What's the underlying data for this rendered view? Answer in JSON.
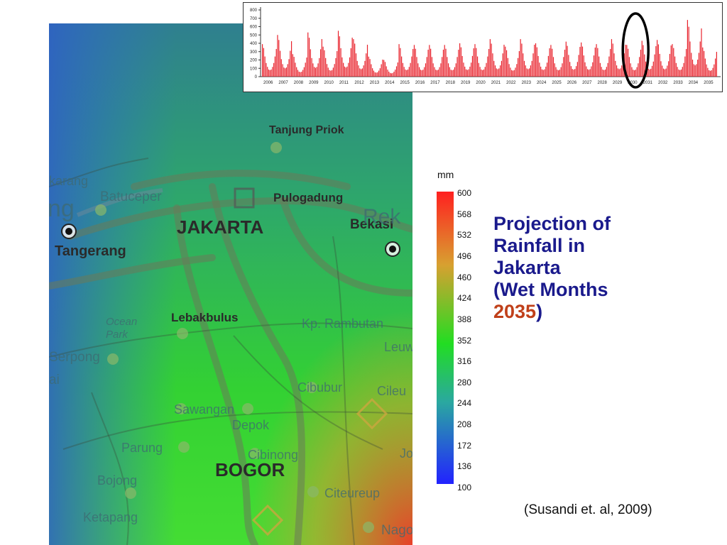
{
  "map": {
    "labels": {
      "tanjung_priok": "Tanjung Priok",
      "pulogadung": "Pulogadung",
      "jakarta": "JAKARTA",
      "bekasi": "Bekasi",
      "tangerang": "Tangerang",
      "batuceper": "Batuceper",
      "karang": "karang",
      "ng": "ng",
      "lebakbulus": "Lebakbulus",
      "ocean_park": "Ocean Park",
      "serpong": "Serpong",
      "kp_rambutan": "Kp. Rambutan",
      "leuw": "Leuw",
      "cibubur": "Cibubur",
      "cileu": "Cileu",
      "sawangan": "Sawangan",
      "depok": "Depok",
      "parung": "Parung",
      "cibinong": "Cibinong",
      "bogor": "BOGOR",
      "bojong": "Bojong",
      "citeureup": "Citeureup",
      "ketapang": "Ketapang",
      "nago": "Nago",
      "rek": "Rek",
      "jo": "Jo",
      "ai": "ai"
    },
    "icons": [
      "city-marker-icon",
      "roadsign-icon"
    ]
  },
  "legend": {
    "unit": "mm",
    "ticks": [
      "600",
      "568",
      "532",
      "496",
      "460",
      "424",
      "388",
      "352",
      "316",
      "280",
      "244",
      "208",
      "172",
      "136",
      "100"
    ],
    "colors": {
      "high": "#ff2020",
      "mid": "#22dd22",
      "low": "#2222ff"
    }
  },
  "title": {
    "line1": "Projection of",
    "line2": "Rainfall in",
    "line3": "Jakarta",
    "line4_prefix": "(Wet Months ",
    "line4_year": "2035",
    "line4_suffix": ")"
  },
  "citation": "(Susandi et. al, 2009)",
  "chart_data": {
    "type": "bar",
    "color": "#e8202a",
    "x_start_year": 2006,
    "x_end_year": 2035,
    "x_tick_labels": [
      "2006",
      "2007",
      "2008",
      "2009",
      "2010",
      "2011",
      "2012",
      "2013",
      "2014",
      "2015",
      "2016",
      "2017",
      "2018",
      "2019",
      "2020",
      "2021",
      "2022",
      "2023",
      "2024",
      "2025",
      "2026",
      "2027",
      "2028",
      "2029",
      "2030",
      "2031",
      "2032",
      "2033",
      "2034",
      "2035"
    ],
    "y_tick_labels": [
      "0",
      "100",
      "200",
      "300",
      "400",
      "500",
      "600",
      "700",
      "800"
    ],
    "ylim": [
      0,
      800
    ],
    "annual_peaks": [
      390,
      500,
      270,
      530,
      360,
      550,
      450,
      240,
      200,
      390,
      380,
      380,
      380,
      400,
      390,
      450,
      360,
      450,
      400,
      380,
      420,
      410,
      390,
      450,
      380,
      430,
      440,
      390,
      680,
      350
    ],
    "highlight": {
      "shape": "ellipse",
      "year": 2030,
      "color": "#000000"
    }
  }
}
